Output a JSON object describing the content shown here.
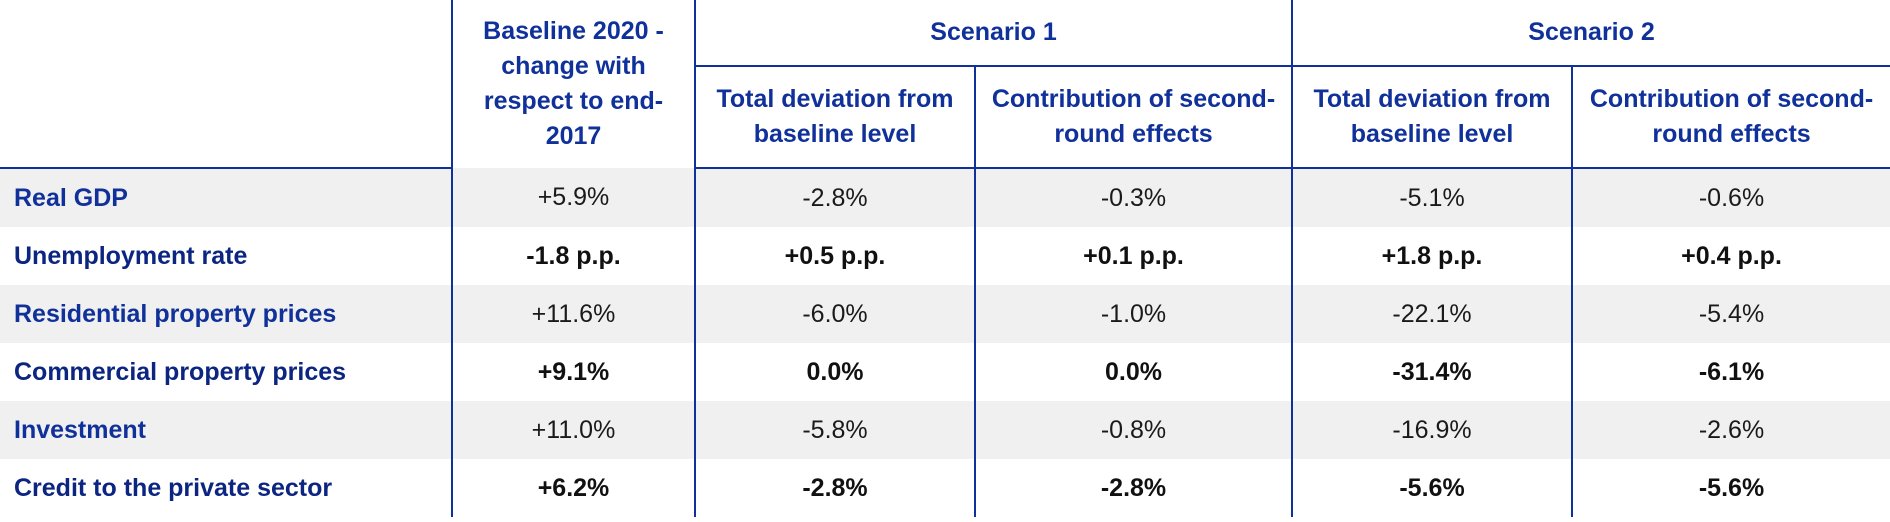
{
  "header": {
    "baseline": "Baseline 2020 - change with respect to end-2017",
    "scenarios": [
      {
        "title": "Scenario 1",
        "columns": [
          "Total deviation from baseline level",
          "Contribution of second-round effects"
        ]
      },
      {
        "title": "Scenario 2",
        "columns": [
          "Total deviation from baseline level",
          "Contribution of second-round effects"
        ]
      }
    ]
  },
  "rows": [
    {
      "label": "Real GDP",
      "baseline": "+5.9%",
      "s1_total": "-2.8%",
      "s1_second": "-0.3%",
      "s2_total": "-5.1%",
      "s2_second": "-0.6%"
    },
    {
      "label": "Unemployment rate",
      "baseline": "-1.8 p.p.",
      "s1_total": "+0.5 p.p.",
      "s1_second": "+0.1 p.p.",
      "s2_total": "+1.8 p.p.",
      "s2_second": "+0.4 p.p."
    },
    {
      "label": "Residential property prices",
      "baseline": "+11.6%",
      "s1_total": "-6.0%",
      "s1_second": "-1.0%",
      "s2_total": "-22.1%",
      "s2_second": "-5.4%"
    },
    {
      "label": "Commercial property prices",
      "baseline": "+9.1%",
      "s1_total": "0.0%",
      "s1_second": "0.0%",
      "s2_total": "-31.4%",
      "s2_second": "-6.1%"
    },
    {
      "label": "Investment",
      "baseline": "+11.0%",
      "s1_total": "-5.8%",
      "s1_second": "-0.8%",
      "s2_total": "-16.9%",
      "s2_second": "-2.6%"
    },
    {
      "label": "Credit to the private sector",
      "baseline": "+6.2%",
      "s1_total": "-2.8%",
      "s1_second": "-2.8%",
      "s2_total": "-5.6%",
      "s2_second": "-5.6%"
    }
  ],
  "colors": {
    "header_text": "#10309a",
    "rule": "#10309a",
    "row_shade": "#f0f0f0"
  }
}
